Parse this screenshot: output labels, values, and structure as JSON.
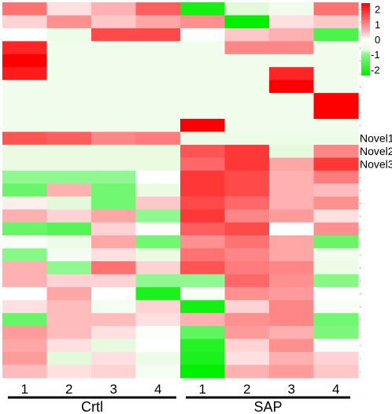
{
  "chart_data": {
    "type": "heatmap",
    "columns": [
      "1",
      "2",
      "3",
      "4",
      "1",
      "2",
      "3",
      "4"
    ],
    "groups": [
      {
        "label": "Crtl",
        "columns": [
          0,
          1,
          2,
          3
        ]
      },
      {
        "label": "SAP",
        "columns": [
          4,
          5,
          6,
          7
        ]
      }
    ],
    "row_labels": [
      {
        "row": 10,
        "label": "Novel1"
      },
      {
        "row": 11,
        "label": "Novel2"
      },
      {
        "row": 12,
        "label": "Novel3"
      }
    ],
    "colorscale": {
      "min": -2.4,
      "max": 2.4,
      "low_color": "#00f000",
      "mid_color": "#ffffff",
      "high_color": "#ff0000",
      "ticks": [
        "2",
        "1",
        "0",
        "-1",
        "-2"
      ],
      "tick_values": [
        2,
        1,
        0,
        -1,
        -2
      ]
    },
    "values": [
      [
        1.2,
        0.2,
        0.6,
        1.4,
        -2.2,
        -0.8,
        -0.4,
        1.2
      ],
      [
        0.3,
        0.9,
        0.4,
        0.7,
        0.9,
        -2.4,
        0.2,
        0.4
      ],
      [
        0.0,
        -0.5,
        1.6,
        1.6,
        -0.1,
        0.4,
        0.6,
        -1.6
      ],
      [
        2.0,
        -0.4,
        -0.4,
        -0.4,
        -0.4,
        1.0,
        1.0,
        -0.4
      ],
      [
        2.4,
        -0.4,
        -0.4,
        -0.4,
        -0.4,
        -0.4,
        -0.4,
        -0.4
      ],
      [
        2.1,
        -0.4,
        -0.4,
        -0.4,
        -0.4,
        -0.4,
        2.0,
        -0.4
      ],
      [
        -0.4,
        -0.4,
        -0.4,
        -0.4,
        -0.4,
        -0.4,
        2.4,
        -0.4
      ],
      [
        -0.4,
        -0.4,
        -0.4,
        -0.4,
        -0.4,
        -0.4,
        -0.4,
        2.4
      ],
      [
        -0.4,
        -0.4,
        -0.4,
        -0.4,
        -0.4,
        -0.4,
        -0.4,
        2.4
      ],
      [
        -0.4,
        -0.4,
        -0.4,
        -0.4,
        2.4,
        -0.4,
        -0.4,
        -0.4
      ],
      [
        1.5,
        1.4,
        1.0,
        1.1,
        -0.5,
        -0.5,
        -0.5,
        -0.5
      ],
      [
        -0.6,
        -0.6,
        -0.6,
        -0.6,
        1.5,
        1.8,
        -0.7,
        1.0
      ],
      [
        -0.6,
        -0.6,
        -0.6,
        -0.6,
        1.3,
        1.8,
        0.7,
        1.8
      ],
      [
        -0.9,
        -0.9,
        -0.9,
        0.0,
        1.8,
        1.6,
        0.6,
        1.1
      ],
      [
        -1.3,
        0.6,
        -1.2,
        -0.6,
        1.8,
        1.6,
        0.6,
        0.5
      ],
      [
        0.1,
        -0.8,
        -1.2,
        0.4,
        1.6,
        1.3,
        0.6,
        0.9
      ],
      [
        0.6,
        0.3,
        0.7,
        -0.9,
        1.8,
        1.0,
        0.8,
        0.2
      ],
      [
        -1.3,
        -1.5,
        0.3,
        -0.1,
        1.4,
        1.6,
        0.0,
        0.9
      ],
      [
        -0.2,
        -0.5,
        0.7,
        -1.2,
        0.9,
        1.2,
        0.7,
        -1.3
      ],
      [
        -1.0,
        -0.3,
        0.2,
        -0.6,
        1.2,
        1.0,
        0.7,
        -0.4
      ],
      [
        0.6,
        -0.9,
        1.2,
        0.3,
        1.5,
        1.1,
        1.0,
        -0.5
      ],
      [
        0.6,
        0.3,
        0.3,
        -0.9,
        -0.9,
        1.3,
        0.9,
        -1.0
      ],
      [
        0.0,
        0.7,
        0.0,
        -2.1,
        -0.2,
        0.9,
        0.8,
        0.0
      ],
      [
        0.2,
        0.5,
        -0.3,
        0.3,
        -2.2,
        0.3,
        1.0,
        -0.2
      ],
      [
        -1.3,
        0.5,
        0.5,
        0.2,
        0.6,
        0.9,
        1.0,
        -1.2
      ],
      [
        0.8,
        0.5,
        0.2,
        -0.1,
        -1.4,
        0.8,
        0.6,
        -1.1
      ],
      [
        0.7,
        0.2,
        -0.7,
        0.0,
        -2.0,
        0.3,
        0.9,
        -0.1
      ],
      [
        0.8,
        -0.8,
        0.2,
        -0.5,
        -2.1,
        0.2,
        0.6,
        0.3
      ],
      [
        0.5,
        0.2,
        0.3,
        -0.3,
        -2.4,
        0.6,
        0.8,
        0.4
      ]
    ]
  }
}
